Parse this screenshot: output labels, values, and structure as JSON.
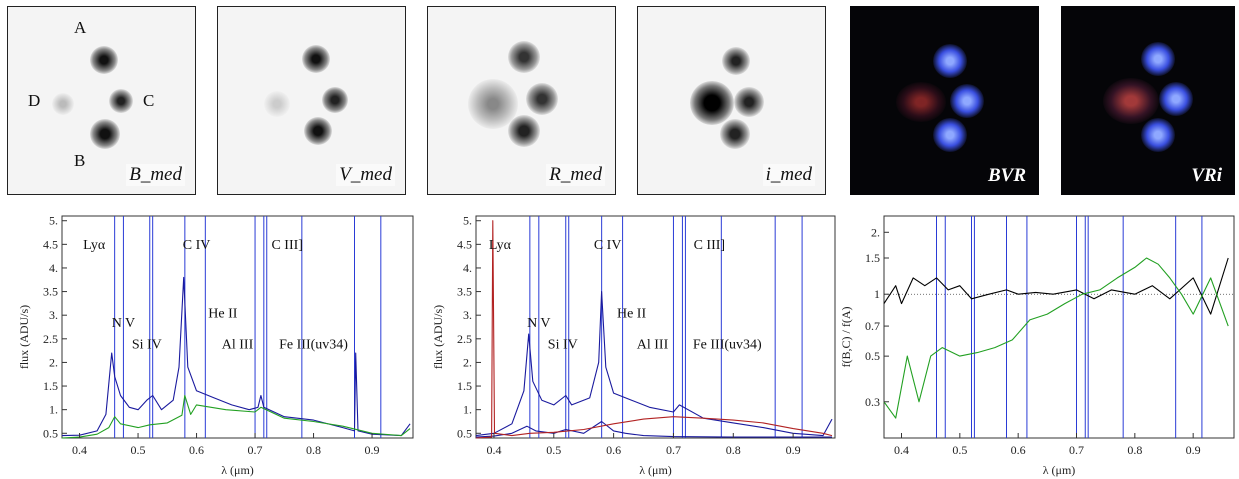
{
  "stamps": [
    {
      "label": "B_med"
    },
    {
      "label": "V_med"
    },
    {
      "label": "R_med"
    },
    {
      "label": "i_med"
    },
    {
      "label": "BVR"
    },
    {
      "label": "VRi"
    }
  ],
  "components": {
    "a": "A",
    "b": "B",
    "c": "C",
    "d": "D"
  },
  "colors": {
    "blue": "#1a1a9e",
    "red": "#b22222",
    "green": "#22a022",
    "black": "#000000",
    "line": "#2a3bd6"
  },
  "line_markers_um": [
    0.46,
    0.475,
    0.52,
    0.525,
    0.58,
    0.615,
    0.7,
    0.715,
    0.72,
    0.78,
    0.87,
    0.915
  ],
  "chart_data": [
    {
      "type": "line",
      "xlabel": "λ (μm)",
      "ylabel": "flux (ADU/s)",
      "xlim": [
        0.37,
        0.97
      ],
      "ylim": [
        0.4,
        5.1
      ],
      "x_ticks": [
        "0.4",
        "0.5",
        "0.6",
        "0.7",
        "0.8",
        "0.9"
      ],
      "y_ticks": [
        "0.5",
        "1.",
        "1.5",
        "2.",
        "2.5",
        "3.",
        "3.5",
        "4.",
        "4.5",
        "5."
      ],
      "annotations": [
        {
          "text": "Lyα",
          "x": 0.425,
          "y": 4.4
        },
        {
          "text": "N V",
          "x": 0.475,
          "y": 2.75
        },
        {
          "text": "Si IV",
          "x": 0.515,
          "y": 2.3
        },
        {
          "text": "C IV",
          "x": 0.6,
          "y": 4.4
        },
        {
          "text": "He II",
          "x": 0.645,
          "y": 2.95
        },
        {
          "text": "Al III",
          "x": 0.67,
          "y": 2.3
        },
        {
          "text": "C III]",
          "x": 0.755,
          "y": 4.4
        },
        {
          "text": "Fe III(uv34)",
          "x": 0.8,
          "y": 2.3
        }
      ],
      "series": [
        {
          "color": "#1a1a9e",
          "points": [
            [
              0.37,
              0.45
            ],
            [
              0.4,
              0.46
            ],
            [
              0.43,
              0.55
            ],
            [
              0.445,
              0.9
            ],
            [
              0.455,
              2.2
            ],
            [
              0.46,
              1.7
            ],
            [
              0.47,
              1.3
            ],
            [
              0.485,
              1.05
            ],
            [
              0.5,
              1.0
            ],
            [
              0.515,
              1.2
            ],
            [
              0.525,
              1.3
            ],
            [
              0.54,
              1.0
            ],
            [
              0.56,
              1.2
            ],
            [
              0.57,
              1.9
            ],
            [
              0.578,
              3.8
            ],
            [
              0.585,
              1.9
            ],
            [
              0.6,
              1.4
            ],
            [
              0.63,
              1.25
            ],
            [
              0.66,
              1.1
            ],
            [
              0.69,
              1.0
            ],
            [
              0.705,
              1.05
            ],
            [
              0.71,
              1.3
            ],
            [
              0.715,
              1.05
            ],
            [
              0.75,
              0.85
            ],
            [
              0.8,
              0.78
            ],
            [
              0.85,
              0.62
            ],
            [
              0.87,
              0.55
            ],
            [
              0.872,
              2.2
            ],
            [
              0.876,
              0.55
            ],
            [
              0.9,
              0.48
            ],
            [
              0.95,
              0.45
            ],
            [
              0.965,
              0.7
            ]
          ]
        },
        {
          "color": "#22a022",
          "points": [
            [
              0.37,
              0.4
            ],
            [
              0.4,
              0.42
            ],
            [
              0.43,
              0.48
            ],
            [
              0.45,
              0.62
            ],
            [
              0.46,
              0.85
            ],
            [
              0.47,
              0.7
            ],
            [
              0.5,
              0.62
            ],
            [
              0.52,
              0.68
            ],
            [
              0.55,
              0.72
            ],
            [
              0.575,
              0.88
            ],
            [
              0.58,
              1.3
            ],
            [
              0.59,
              0.9
            ],
            [
              0.6,
              1.1
            ],
            [
              0.65,
              1.0
            ],
            [
              0.7,
              0.95
            ],
            [
              0.71,
              1.05
            ],
            [
              0.75,
              0.82
            ],
            [
              0.8,
              0.75
            ],
            [
              0.85,
              0.65
            ],
            [
              0.9,
              0.5
            ],
            [
              0.95,
              0.45
            ],
            [
              0.965,
              0.6
            ]
          ]
        }
      ]
    },
    {
      "type": "line",
      "xlabel": "λ (μm)",
      "ylabel": "flux (ADU/s)",
      "xlim": [
        0.37,
        0.97
      ],
      "ylim": [
        0.4,
        5.1
      ],
      "x_ticks": [
        "0.4",
        "0.5",
        "0.6",
        "0.7",
        "0.8",
        "0.9"
      ],
      "y_ticks": [
        "0.5",
        "1.",
        "1.5",
        "2.",
        "2.5",
        "3.",
        "3.5",
        "4.",
        "4.5",
        "5."
      ],
      "annotations": [
        {
          "text": "Lyα",
          "x": 0.41,
          "y": 4.4
        },
        {
          "text": "N V",
          "x": 0.475,
          "y": 2.75
        },
        {
          "text": "Si IV",
          "x": 0.515,
          "y": 2.3
        },
        {
          "text": "C IV",
          "x": 0.59,
          "y": 4.4
        },
        {
          "text": "He II",
          "x": 0.63,
          "y": 2.95
        },
        {
          "text": "Al III",
          "x": 0.665,
          "y": 2.3
        },
        {
          "text": "C III]",
          "x": 0.76,
          "y": 4.4
        },
        {
          "text": "Fe III(uv34)",
          "x": 0.79,
          "y": 2.3
        }
      ],
      "series": [
        {
          "color": "#1a1a9e",
          "points": [
            [
              0.37,
              0.45
            ],
            [
              0.4,
              0.5
            ],
            [
              0.43,
              0.7
            ],
            [
              0.45,
              1.4
            ],
            [
              0.458,
              2.6
            ],
            [
              0.465,
              1.6
            ],
            [
              0.48,
              1.2
            ],
            [
              0.5,
              1.1
            ],
            [
              0.52,
              1.3
            ],
            [
              0.53,
              1.1
            ],
            [
              0.56,
              1.25
            ],
            [
              0.575,
              2.0
            ],
            [
              0.58,
              3.5
            ],
            [
              0.587,
              1.9
            ],
            [
              0.6,
              1.35
            ],
            [
              0.63,
              1.2
            ],
            [
              0.66,
              1.05
            ],
            [
              0.7,
              0.95
            ],
            [
              0.71,
              1.1
            ],
            [
              0.75,
              0.82
            ],
            [
              0.8,
              0.72
            ],
            [
              0.85,
              0.62
            ],
            [
              0.9,
              0.5
            ],
            [
              0.95,
              0.45
            ],
            [
              0.965,
              0.8
            ]
          ]
        },
        {
          "color": "#1a1a9e",
          "points": [
            [
              0.37,
              0.42
            ],
            [
              0.4,
              0.44
            ],
            [
              0.43,
              0.5
            ],
            [
              0.455,
              0.65
            ],
            [
              0.47,
              0.55
            ],
            [
              0.5,
              0.5
            ],
            [
              0.52,
              0.58
            ],
            [
              0.55,
              0.5
            ],
            [
              0.58,
              0.75
            ],
            [
              0.6,
              0.55
            ],
            [
              0.62,
              0.5
            ],
            [
              0.65,
              0.45
            ],
            [
              0.7,
              0.43
            ],
            [
              0.8,
              0.42
            ],
            [
              0.9,
              0.42
            ],
            [
              0.965,
              0.42
            ]
          ]
        },
        {
          "color": "#b22222",
          "points": [
            [
              0.37,
              0.4
            ],
            [
              0.396,
              0.42
            ],
            [
              0.398,
              5.0
            ],
            [
              0.401,
              0.5
            ],
            [
              0.43,
              0.45
            ],
            [
              0.46,
              0.5
            ],
            [
              0.5,
              0.52
            ],
            [
              0.55,
              0.58
            ],
            [
              0.6,
              0.7
            ],
            [
              0.65,
              0.8
            ],
            [
              0.7,
              0.85
            ],
            [
              0.75,
              0.82
            ],
            [
              0.8,
              0.78
            ],
            [
              0.85,
              0.72
            ],
            [
              0.9,
              0.6
            ],
            [
              0.95,
              0.5
            ],
            [
              0.965,
              0.45
            ]
          ]
        }
      ]
    },
    {
      "type": "line",
      "xlabel": "λ (μm)",
      "ylabel": "f(B,C) / f(A)",
      "xlim": [
        0.37,
        0.97
      ],
      "ylim": [
        0.2,
        2.4
      ],
      "y_scale": "log",
      "x_ticks": [
        "0.4",
        "0.5",
        "0.6",
        "0.7",
        "0.8",
        "0.9"
      ],
      "y_ticks": [
        "0.3",
        "0.5",
        "0.7",
        "1",
        "1.5",
        "2."
      ],
      "series": [
        {
          "color": "#000000",
          "points": [
            [
              0.37,
              0.9
            ],
            [
              0.39,
              1.1
            ],
            [
              0.4,
              0.9
            ],
            [
              0.42,
              1.2
            ],
            [
              0.44,
              1.1
            ],
            [
              0.46,
              1.2
            ],
            [
              0.48,
              1.05
            ],
            [
              0.5,
              1.1
            ],
            [
              0.52,
              0.95
            ],
            [
              0.55,
              1.0
            ],
            [
              0.58,
              1.05
            ],
            [
              0.6,
              1.0
            ],
            [
              0.63,
              1.02
            ],
            [
              0.66,
              1.0
            ],
            [
              0.7,
              1.05
            ],
            [
              0.73,
              0.95
            ],
            [
              0.76,
              1.05
            ],
            [
              0.8,
              1.0
            ],
            [
              0.83,
              1.1
            ],
            [
              0.86,
              0.95
            ],
            [
              0.9,
              1.2
            ],
            [
              0.93,
              0.8
            ],
            [
              0.96,
              1.5
            ]
          ]
        },
        {
          "color": "#22a022",
          "points": [
            [
              0.37,
              0.3
            ],
            [
              0.39,
              0.25
            ],
            [
              0.41,
              0.5
            ],
            [
              0.43,
              0.3
            ],
            [
              0.45,
              0.5
            ],
            [
              0.47,
              0.55
            ],
            [
              0.5,
              0.5
            ],
            [
              0.53,
              0.52
            ],
            [
              0.56,
              0.55
            ],
            [
              0.59,
              0.6
            ],
            [
              0.62,
              0.75
            ],
            [
              0.65,
              0.8
            ],
            [
              0.68,
              0.9
            ],
            [
              0.71,
              1.0
            ],
            [
              0.74,
              1.05
            ],
            [
              0.77,
              1.2
            ],
            [
              0.8,
              1.35
            ],
            [
              0.82,
              1.5
            ],
            [
              0.84,
              1.4
            ],
            [
              0.86,
              1.2
            ],
            [
              0.88,
              1.0
            ],
            [
              0.9,
              0.8
            ],
            [
              0.93,
              1.2
            ],
            [
              0.96,
              0.7
            ]
          ]
        }
      ]
    }
  ]
}
